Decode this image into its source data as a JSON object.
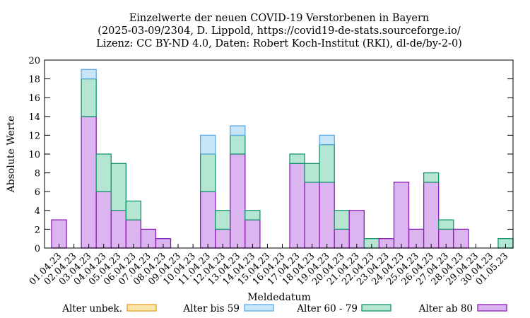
{
  "chart_data": {
    "type": "bar",
    "stacked": true,
    "title_lines": [
      "Einzelwerte der neuen COVID-19 Verstorbenen in Bayern",
      "(2025-03-09/2304, D. Lippold, https://covid19-de-stats.sourceforge.io/",
      "Lizenz: CC BY-ND 4.0, Daten: Robert Koch-Institut (RKI), dl-de/by-2-0)"
    ],
    "xlabel": "Meldedatum",
    "ylabel": "Absolute Werte",
    "ylim": [
      0,
      20
    ],
    "yticks": [
      0,
      2,
      4,
      6,
      8,
      10,
      12,
      14,
      16,
      18,
      20
    ],
    "grid": false,
    "categories": [
      "01.04.23",
      "02.04.23",
      "03.04.23",
      "04.04.23",
      "05.04.23",
      "06.04.23",
      "07.04.23",
      "08.04.23",
      "09.04.23",
      "10.04.23",
      "11.04.23",
      "12.04.23",
      "13.04.23",
      "14.04.23",
      "15.04.23",
      "16.04.23",
      "17.04.23",
      "18.04.23",
      "19.04.23",
      "20.04.23",
      "21.04.23",
      "22.04.23",
      "23.04.23",
      "24.04.23",
      "25.04.23",
      "26.04.23",
      "27.04.23",
      "28.04.23",
      "29.04.23",
      "30.04.23",
      "01.05.23"
    ],
    "series": [
      {
        "name": "Alter ab 80",
        "fill": "#dcb4f0",
        "stroke": "#8c1eb4",
        "values": [
          3,
          0,
          14,
          6,
          4,
          3,
          2,
          1,
          0,
          0,
          6,
          2,
          10,
          3,
          0,
          0,
          9,
          7,
          7,
          2,
          4,
          0,
          1,
          7,
          2,
          7,
          2,
          2,
          0,
          0,
          0
        ]
      },
      {
        "name": "Alter 60 - 79",
        "fill": "#b4e6d2",
        "stroke": "#14966e",
        "values": [
          0,
          0,
          4,
          4,
          5,
          2,
          0,
          0,
          0,
          0,
          4,
          2,
          2,
          1,
          0,
          0,
          1,
          2,
          4,
          2,
          0,
          1,
          0,
          0,
          0,
          1,
          1,
          0,
          0,
          0,
          1
        ]
      },
      {
        "name": "Alter bis 59",
        "fill": "#c8e6f8",
        "stroke": "#5aaae6",
        "values": [
          0,
          0,
          1,
          0,
          0,
          0,
          0,
          0,
          0,
          0,
          2,
          0,
          1,
          0,
          0,
          0,
          0,
          0,
          1,
          0,
          0,
          0,
          0,
          0,
          0,
          0,
          0,
          0,
          0,
          0,
          0
        ]
      },
      {
        "name": "Alter unbek.",
        "fill": "#fae6aa",
        "stroke": "#e6a01e",
        "values": [
          0,
          0,
          0,
          0,
          0,
          0,
          0,
          0,
          0,
          0,
          0,
          0,
          0,
          0,
          0,
          0,
          0,
          0,
          0,
          0,
          0,
          0,
          0,
          0,
          0,
          0,
          0,
          0,
          0,
          0,
          0
        ]
      }
    ],
    "legend_order": [
      "Alter unbek.",
      "Alter bis 59",
      "Alter 60 - 79",
      "Alter ab 80"
    ],
    "legend_placement": "bottom"
  }
}
